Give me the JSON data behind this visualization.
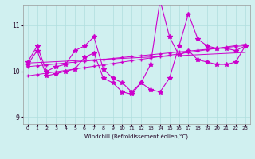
{
  "xlabel": "Windchill (Refroidissement éolien,°C)",
  "bg_color": "#d0f0f0",
  "grid_color": "#b0dede",
  "line_color": "#cc00cc",
  "xlim": [
    -0.5,
    23.5
  ],
  "ylim": [
    8.85,
    11.45
  ],
  "yticks": [
    9,
    10,
    11
  ],
  "xticks": [
    0,
    1,
    2,
    3,
    4,
    5,
    6,
    7,
    8,
    9,
    10,
    11,
    12,
    13,
    14,
    15,
    16,
    17,
    18,
    19,
    20,
    21,
    22,
    23
  ],
  "series1": [
    10.2,
    10.55,
    10.0,
    10.1,
    10.15,
    10.45,
    10.55,
    10.75,
    10.05,
    9.85,
    9.75,
    9.55,
    9.75,
    10.15,
    11.55,
    10.75,
    10.35,
    10.45,
    10.25,
    10.2,
    10.15,
    10.15,
    10.2,
    10.55
  ],
  "series2": [
    10.15,
    10.45,
    9.9,
    9.95,
    10.0,
    10.05,
    10.3,
    10.4,
    9.85,
    9.75,
    9.55,
    9.5,
    9.75,
    9.6,
    9.55,
    9.85,
    10.55,
    11.25,
    10.7,
    10.55,
    10.5,
    10.5,
    10.45,
    10.55
  ],
  "trend1": [
    9.9,
    9.93,
    9.96,
    9.99,
    10.02,
    10.05,
    10.08,
    10.11,
    10.14,
    10.17,
    10.2,
    10.23,
    10.26,
    10.29,
    10.32,
    10.35,
    10.38,
    10.41,
    10.44,
    10.47,
    10.5,
    10.53,
    10.56,
    10.59
  ],
  "trend2": [
    10.1,
    10.12,
    10.14,
    10.16,
    10.18,
    10.2,
    10.22,
    10.24,
    10.26,
    10.28,
    10.3,
    10.32,
    10.34,
    10.36,
    10.38,
    10.4,
    10.42,
    10.44,
    10.46,
    10.48,
    10.5,
    10.52,
    10.54,
    10.56
  ],
  "trend3": [
    10.18,
    10.19,
    10.2,
    10.21,
    10.22,
    10.23,
    10.24,
    10.25,
    10.26,
    10.27,
    10.28,
    10.29,
    10.3,
    10.31,
    10.32,
    10.33,
    10.34,
    10.35,
    10.36,
    10.37,
    10.38,
    10.39,
    10.4,
    10.41
  ]
}
